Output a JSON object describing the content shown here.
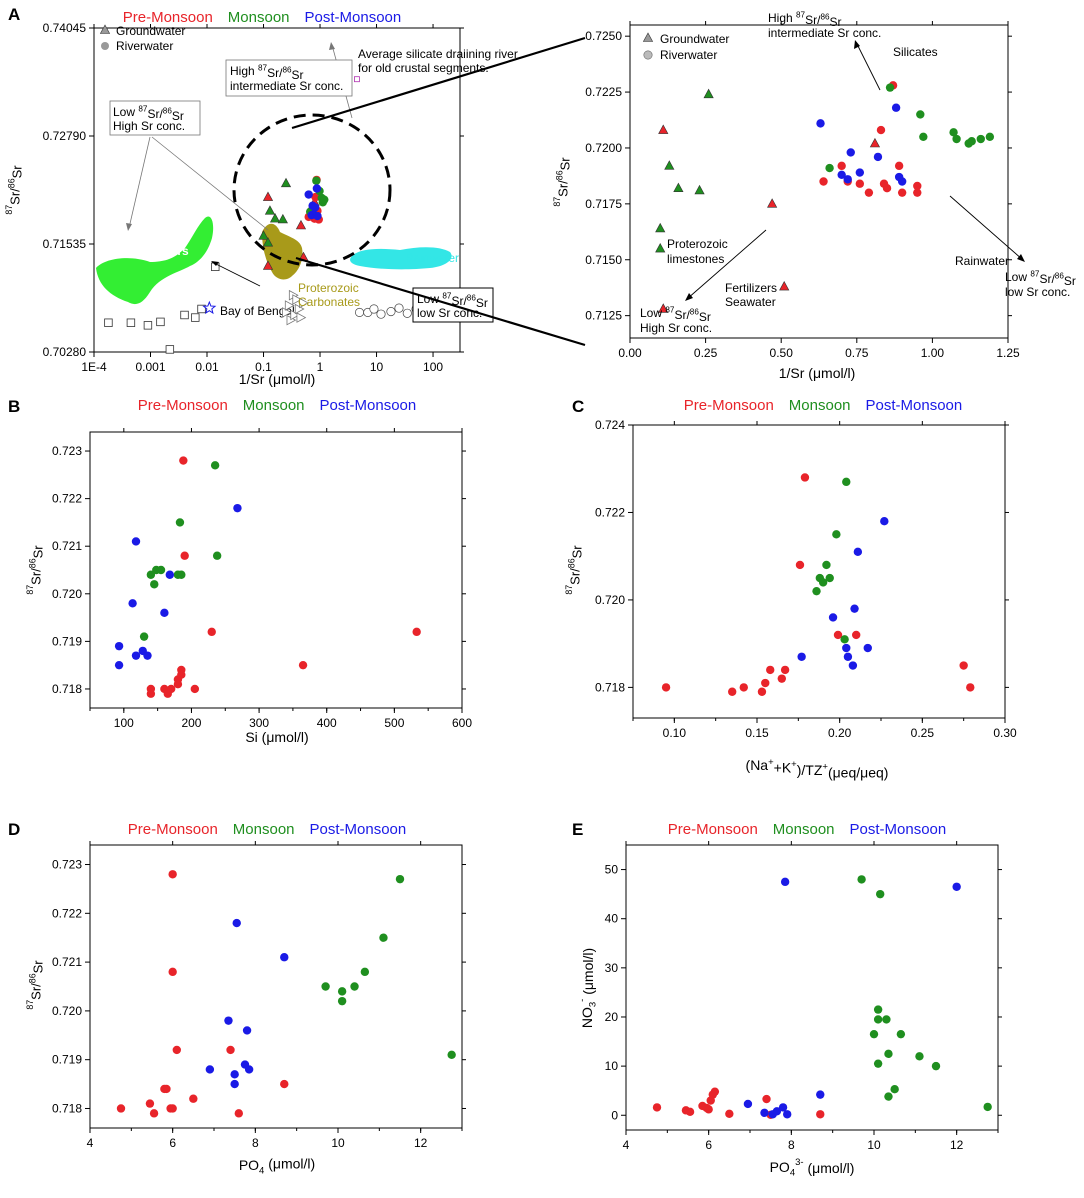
{
  "colors": {
    "pre": "#e8242a",
    "mon": "#1f8f1f",
    "post": "#1a1ae6",
    "fert": "#33ee33",
    "rain": "#33e6e6",
    "carb": "#a89a1a",
    "axis": "#000000"
  },
  "seasons": {
    "pre": "Pre-Monsoon",
    "mon": "Monsoon",
    "post": "Post-Monsoon"
  },
  "superscripts": {
    "a87": "87",
    "a86": "86",
    "sub4": "4",
    "po4charge": "3-",
    "no3charge": "-",
    "plus": "+"
  },
  "chart_data": [
    {
      "id": "A",
      "type": "scatter",
      "panel_label": "A",
      "xscale": "log",
      "xlim": [
        0.0001,
        300
      ],
      "ylim": [
        0.7028,
        0.74045
      ],
      "xlabel": "1/Sr (μmol/l)",
      "ylabel_base": "Sr/ Sr",
      "xticks": [
        0.0001,
        0.001,
        0.01,
        0.1,
        1,
        10,
        100
      ],
      "xtick_labels": [
        "1E-4",
        "0.001",
        "0.01",
        "0.1",
        "1",
        "10",
        "100"
      ],
      "yticks": [
        0.7028,
        0.71535,
        0.7279,
        0.74045
      ],
      "ytick_labels": [
        "0.70280",
        "0.71535",
        "0.72790",
        "0.74045"
      ],
      "legend": [
        "Groundwater",
        "Riverwater"
      ],
      "annotations": {
        "fertilizers": "Fertilizers",
        "rainwater": "Rainwater",
        "bay": "Bay of Bengal",
        "carb1": "Proterozoic",
        "carb2": "Carbonates",
        "silicate1": "Average silicate draiining river",
        "silicate2": "for old crustal segments.",
        "hi1a": "High ",
        "hi1b": "Sr/ Sr",
        "hi2": "intermediate Sr conc.",
        "lo1a": "Low ",
        "lo1b": "Sr/ Sr",
        "lo2": "High Sr conc.",
        "llo1a": "Low ",
        "llo1b": "Sr/ Sr",
        "llo2": "low Sr conc."
      },
      "fertilizer_points": [
        [
          0.00018,
          0.7062
        ],
        [
          0.00045,
          0.7062
        ],
        [
          0.0009,
          0.7059
        ],
        [
          0.0015,
          0.7063
        ],
        [
          0.0022,
          0.7031
        ],
        [
          0.004,
          0.7071
        ],
        [
          0.0062,
          0.7068
        ],
        [
          0.008,
          0.7078
        ],
        [
          0.014,
          0.7127
        ]
      ],
      "bay_of_bengal": [
        0.011,
        0.7079
      ],
      "rain_points": [
        [
          5,
          0.7074
        ],
        [
          7,
          0.7074
        ],
        [
          9,
          0.7078
        ],
        [
          12,
          0.7072
        ],
        [
          18,
          0.7075
        ],
        [
          25,
          0.7079
        ],
        [
          35,
          0.7073
        ],
        [
          50,
          0.7078
        ],
        [
          70,
          0.7074
        ],
        [
          100,
          0.7079
        ],
        [
          130,
          0.7075
        ]
      ],
      "carbonate_points": [
        [
          0.25,
          0.7074
        ],
        [
          0.28,
          0.7082
        ],
        [
          0.3,
          0.7065
        ],
        [
          0.33,
          0.7094
        ],
        [
          0.35,
          0.7071
        ],
        [
          0.38,
          0.7089
        ],
        [
          0.42,
          0.7078
        ],
        [
          0.45,
          0.7068
        ],
        [
          0.5,
          0.7085
        ]
      ],
      "silicate_point": [
        4.5,
        0.7345
      ],
      "pre_gw": [
        [
          0.12,
          0.7208
        ],
        [
          0.12,
          0.7128
        ],
        [
          0.51,
          0.7138
        ],
        [
          0.46,
          0.7175
        ],
        [
          0.8,
          0.7202
        ]
      ],
      "mon_gw": [
        [
          0.1,
          0.7163
        ],
        [
          0.12,
          0.7155
        ],
        [
          0.13,
          0.7192
        ],
        [
          0.16,
          0.7183
        ],
        [
          0.22,
          0.7182
        ],
        [
          0.25,
          0.7224
        ]
      ],
      "pre_rw": [
        [
          0.63,
          0.7185
        ],
        [
          0.7,
          0.7192
        ],
        [
          0.73,
          0.7185
        ],
        [
          0.8,
          0.7183
        ],
        [
          0.83,
          0.7208
        ],
        [
          0.87,
          0.7228
        ],
        [
          0.9,
          0.7192
        ],
        [
          0.95,
          0.7182
        ]
      ],
      "mon_rw": [
        [
          0.67,
          0.7191
        ],
        [
          0.86,
          0.7227
        ],
        [
          0.98,
          0.7215
        ],
        [
          1.07,
          0.7207
        ],
        [
          1.12,
          0.7202
        ],
        [
          1.16,
          0.7205
        ],
        [
          1.19,
          0.7205
        ]
      ],
      "post_rw": [
        [
          0.63,
          0.7211
        ],
        [
          0.71,
          0.7187
        ],
        [
          0.74,
          0.7198
        ],
        [
          0.77,
          0.7188
        ],
        [
          0.82,
          0.7196
        ],
        [
          0.88,
          0.7218
        ],
        [
          0.9,
          0.7186
        ]
      ]
    },
    {
      "id": "A-inset",
      "type": "scatter",
      "xlim": [
        0,
        1.25
      ],
      "ylim": [
        0.7115,
        0.7255
      ],
      "xlabel": "1/Sr (μmol/l)",
      "ylabel_base": "Sr/ Sr",
      "xticks": [
        0,
        0.25,
        0.5,
        0.75,
        1.0,
        1.25
      ],
      "xtick_labels": [
        "0.00",
        "0.25",
        "0.50",
        "0.75",
        "1.00",
        "1.25"
      ],
      "yticks": [
        0.7125,
        0.715,
        0.7175,
        0.72,
        0.7225,
        0.725
      ],
      "ytick_labels": [
        "0.7125",
        "0.7150",
        "0.7175",
        "0.7200",
        "0.7225",
        "0.7250"
      ],
      "legend": [
        "Groundwater",
        "Riverwater"
      ],
      "annotations": {
        "silicates": "Silicates",
        "hi1a": "High ",
        "hi1b": "Sr/ Sr",
        "hi2": "intermediate Sr conc.",
        "limestone1": "Proterozoic",
        "limestone2": "limestones",
        "fert1": "Fertilizers",
        "fert2": "Seawater",
        "lo1a": "Low ",
        "lo1b": "Sr/ Sr",
        "lo2": "High Sr conc.",
        "rain": "Rainwater",
        "llo1a": "Low ",
        "llo1b": "Sr/ Sr",
        "llo2": "low Sr conc."
      },
      "pre_gw": [
        [
          0.11,
          0.7208
        ],
        [
          0.11,
          0.7128
        ],
        [
          0.51,
          0.7138
        ],
        [
          0.47,
          0.7175
        ],
        [
          0.81,
          0.7202
        ]
      ],
      "mon_gw": [
        [
          0.1,
          0.7164
        ],
        [
          0.1,
          0.7155
        ],
        [
          0.13,
          0.7192
        ],
        [
          0.16,
          0.7182
        ],
        [
          0.23,
          0.7181
        ],
        [
          0.26,
          0.7224
        ]
      ],
      "pre_rw": [
        [
          0.64,
          0.7185
        ],
        [
          0.7,
          0.7192
        ],
        [
          0.72,
          0.7185
        ],
        [
          0.76,
          0.7184
        ],
        [
          0.79,
          0.718
        ],
        [
          0.83,
          0.7208
        ],
        [
          0.84,
          0.7184
        ],
        [
          0.85,
          0.7182
        ],
        [
          0.87,
          0.7228
        ],
        [
          0.89,
          0.7192
        ],
        [
          0.9,
          0.718
        ],
        [
          0.95,
          0.7183
        ],
        [
          0.95,
          0.718
        ]
      ],
      "mon_rw": [
        [
          0.66,
          0.7191
        ],
        [
          0.86,
          0.7227
        ],
        [
          0.96,
          0.7215
        ],
        [
          0.97,
          0.7205
        ],
        [
          1.07,
          0.7207
        ],
        [
          1.08,
          0.7204
        ],
        [
          1.12,
          0.7202
        ],
        [
          1.13,
          0.7203
        ],
        [
          1.16,
          0.7204
        ],
        [
          1.19,
          0.7205
        ]
      ],
      "post_rw": [
        [
          0.63,
          0.7211
        ],
        [
          0.7,
          0.7188
        ],
        [
          0.72,
          0.7186
        ],
        [
          0.73,
          0.7198
        ],
        [
          0.76,
          0.7189
        ],
        [
          0.82,
          0.7196
        ],
        [
          0.88,
          0.7218
        ],
        [
          0.89,
          0.7187
        ],
        [
          0.9,
          0.7185
        ]
      ]
    },
    {
      "id": "B",
      "type": "scatter",
      "panel_label": "B",
      "xlim": [
        50,
        600
      ],
      "ylim": [
        0.7176,
        0.7234
      ],
      "xlabel": "Si (μmol/l)",
      "ylabel_base": "Sr/ Sr",
      "xticks": [
        100,
        200,
        300,
        400,
        500,
        600
      ],
      "xtick_labels": [
        "100",
        "200",
        "300",
        "400",
        "500",
        "600"
      ],
      "yticks": [
        0.718,
        0.719,
        0.72,
        0.721,
        0.722,
        0.723
      ],
      "ytick_labels": [
        "0.718",
        "0.719",
        "0.720",
        "0.721",
        "0.722",
        "0.723"
      ],
      "pre": [
        [
          140,
          0.718
        ],
        [
          140,
          0.7179
        ],
        [
          160,
          0.718
        ],
        [
          165,
          0.7179
        ],
        [
          170,
          0.718
        ],
        [
          180,
          0.7182
        ],
        [
          180,
          0.7181
        ],
        [
          185,
          0.7184
        ],
        [
          185,
          0.7183
        ],
        [
          188,
          0.7228
        ],
        [
          190,
          0.7208
        ],
        [
          205,
          0.718
        ],
        [
          230,
          0.7192
        ],
        [
          365,
          0.7185
        ],
        [
          533,
          0.7192
        ]
      ],
      "mon": [
        [
          130,
          0.7191
        ],
        [
          140,
          0.7204
        ],
        [
          145,
          0.7202
        ],
        [
          148,
          0.7205
        ],
        [
          155,
          0.7205
        ],
        [
          180,
          0.7204
        ],
        [
          183,
          0.7215
        ],
        [
          185,
          0.7204
        ],
        [
          235,
          0.7227
        ],
        [
          238,
          0.7208
        ]
      ],
      "post": [
        [
          93,
          0.7189
        ],
        [
          93,
          0.7185
        ],
        [
          113,
          0.7198
        ],
        [
          118,
          0.7187
        ],
        [
          118,
          0.7211
        ],
        [
          128,
          0.7188
        ],
        [
          135,
          0.7187
        ],
        [
          160,
          0.7196
        ],
        [
          168,
          0.7204
        ],
        [
          268,
          0.7218
        ]
      ]
    },
    {
      "id": "C",
      "type": "scatter",
      "panel_label": "C",
      "xlim": [
        0.075,
        0.3
      ],
      "ylim": [
        0.7173,
        0.724
      ],
      "xlabel_parts": [
        "(Na",
        "+",
        "+K",
        "+",
        ")/TZ",
        "+",
        "(μeq/μeq)"
      ],
      "ylabel_base": "Sr/ Sr",
      "xticks": [
        0.1,
        0.15,
        0.2,
        0.25,
        0.3
      ],
      "xtick_labels": [
        "0.10",
        "0.15",
        "0.20",
        "0.25",
        "0.30"
      ],
      "yticks": [
        0.718,
        0.72,
        0.722,
        0.724
      ],
      "ytick_labels": [
        "0.718",
        "0.720",
        "0.722",
        "0.724"
      ],
      "pre": [
        [
          0.095,
          0.718
        ],
        [
          0.135,
          0.7179
        ],
        [
          0.142,
          0.718
        ],
        [
          0.153,
          0.7179
        ],
        [
          0.155,
          0.7181
        ],
        [
          0.158,
          0.7184
        ],
        [
          0.165,
          0.7182
        ],
        [
          0.167,
          0.7184
        ],
        [
          0.176,
          0.7208
        ],
        [
          0.179,
          0.7228
        ],
        [
          0.199,
          0.7192
        ],
        [
          0.21,
          0.7192
        ],
        [
          0.275,
          0.7185
        ],
        [
          0.279,
          0.718
        ]
      ],
      "mon": [
        [
          0.186,
          0.7202
        ],
        [
          0.188,
          0.7205
        ],
        [
          0.19,
          0.7204
        ],
        [
          0.192,
          0.7208
        ],
        [
          0.194,
          0.7205
        ],
        [
          0.198,
          0.7215
        ],
        [
          0.203,
          0.7191
        ],
        [
          0.204,
          0.7227
        ]
      ],
      "post": [
        [
          0.177,
          0.7187
        ],
        [
          0.196,
          0.7196
        ],
        [
          0.204,
          0.7189
        ],
        [
          0.205,
          0.7187
        ],
        [
          0.208,
          0.7185
        ],
        [
          0.209,
          0.7198
        ],
        [
          0.211,
          0.7211
        ],
        [
          0.217,
          0.7189
        ],
        [
          0.227,
          0.7218
        ]
      ]
    },
    {
      "id": "D",
      "type": "scatter",
      "panel_label": "D",
      "xlim": [
        4,
        13
      ],
      "ylim": [
        0.7176,
        0.7234
      ],
      "xlabel_base": "PO  (μmol/l)",
      "ylabel_base": "Sr/ Sr",
      "xticks": [
        4,
        6,
        8,
        10,
        12
      ],
      "xtick_labels": [
        "4",
        "6",
        "8",
        "10",
        "12"
      ],
      "yticks": [
        0.718,
        0.719,
        0.72,
        0.721,
        0.722,
        0.723
      ],
      "ytick_labels": [
        "0.718",
        "0.719",
        "0.720",
        "0.721",
        "0.722",
        "0.723"
      ],
      "pre": [
        [
          4.75,
          0.718
        ],
        [
          5.45,
          0.7181
        ],
        [
          5.55,
          0.7179
        ],
        [
          5.8,
          0.7184
        ],
        [
          5.85,
          0.7184
        ],
        [
          5.95,
          0.718
        ],
        [
          6.0,
          0.7228
        ],
        [
          6.0,
          0.718
        ],
        [
          6.0,
          0.7208
        ],
        [
          6.1,
          0.7192
        ],
        [
          6.5,
          0.7182
        ],
        [
          7.4,
          0.7192
        ],
        [
          7.6,
          0.7179
        ],
        [
          8.7,
          0.7185
        ]
      ],
      "mon": [
        [
          9.7,
          0.7205
        ],
        [
          10.1,
          0.7204
        ],
        [
          10.1,
          0.7202
        ],
        [
          10.4,
          0.7205
        ],
        [
          10.65,
          0.7208
        ],
        [
          11.1,
          0.7215
        ],
        [
          11.5,
          0.7227
        ],
        [
          12.75,
          0.7191
        ]
      ],
      "post": [
        [
          6.9,
          0.7188
        ],
        [
          7.35,
          0.7198
        ],
        [
          7.5,
          0.7187
        ],
        [
          7.5,
          0.7185
        ],
        [
          7.55,
          0.7218
        ],
        [
          7.75,
          0.7189
        ],
        [
          7.8,
          0.7196
        ],
        [
          7.85,
          0.7188
        ],
        [
          8.7,
          0.7211
        ]
      ]
    },
    {
      "id": "E",
      "type": "scatter",
      "panel_label": "E",
      "xlim": [
        4,
        13
      ],
      "ylim": [
        -3,
        55
      ],
      "xlabel_base": "PO  (μmol/l)",
      "ylabel_base": "NO  (μmol/l)",
      "xticks": [
        4,
        6,
        8,
        10,
        12
      ],
      "xtick_labels": [
        "4",
        "6",
        "8",
        "10",
        "12"
      ],
      "yticks": [
        0,
        10,
        20,
        30,
        40,
        50
      ],
      "ytick_labels": [
        "0",
        "10",
        "20",
        "30",
        "40",
        "50"
      ],
      "pre": [
        [
          4.75,
          1.6
        ],
        [
          5.45,
          1.0
        ],
        [
          5.55,
          0.7
        ],
        [
          5.85,
          1.9
        ],
        [
          5.95,
          1.5
        ],
        [
          6.0,
          1.2
        ],
        [
          6.05,
          3.0
        ],
        [
          6.1,
          4.2
        ],
        [
          6.15,
          4.8
        ],
        [
          6.5,
          0.3
        ],
        [
          7.4,
          3.3
        ],
        [
          7.5,
          0.1
        ],
        [
          8.7,
          0.2
        ]
      ],
      "mon": [
        [
          9.7,
          48.0
        ],
        [
          10.15,
          45.0
        ],
        [
          10.1,
          21.5
        ],
        [
          10.1,
          19.5
        ],
        [
          10.0,
          16.5
        ],
        [
          10.1,
          10.5
        ],
        [
          10.3,
          19.5
        ],
        [
          10.35,
          12.5
        ],
        [
          10.35,
          3.8
        ],
        [
          10.5,
          5.3
        ],
        [
          10.65,
          16.5
        ],
        [
          11.1,
          12.0
        ],
        [
          11.5,
          10.0
        ],
        [
          12.75,
          1.7
        ]
      ],
      "post": [
        [
          6.95,
          2.3
        ],
        [
          7.35,
          0.5
        ],
        [
          7.55,
          0.2
        ],
        [
          7.65,
          0.8
        ],
        [
          7.8,
          1.6
        ],
        [
          7.85,
          47.5
        ],
        [
          7.9,
          0.2
        ],
        [
          8.7,
          4.2
        ],
        [
          12.0,
          46.5
        ]
      ]
    }
  ]
}
